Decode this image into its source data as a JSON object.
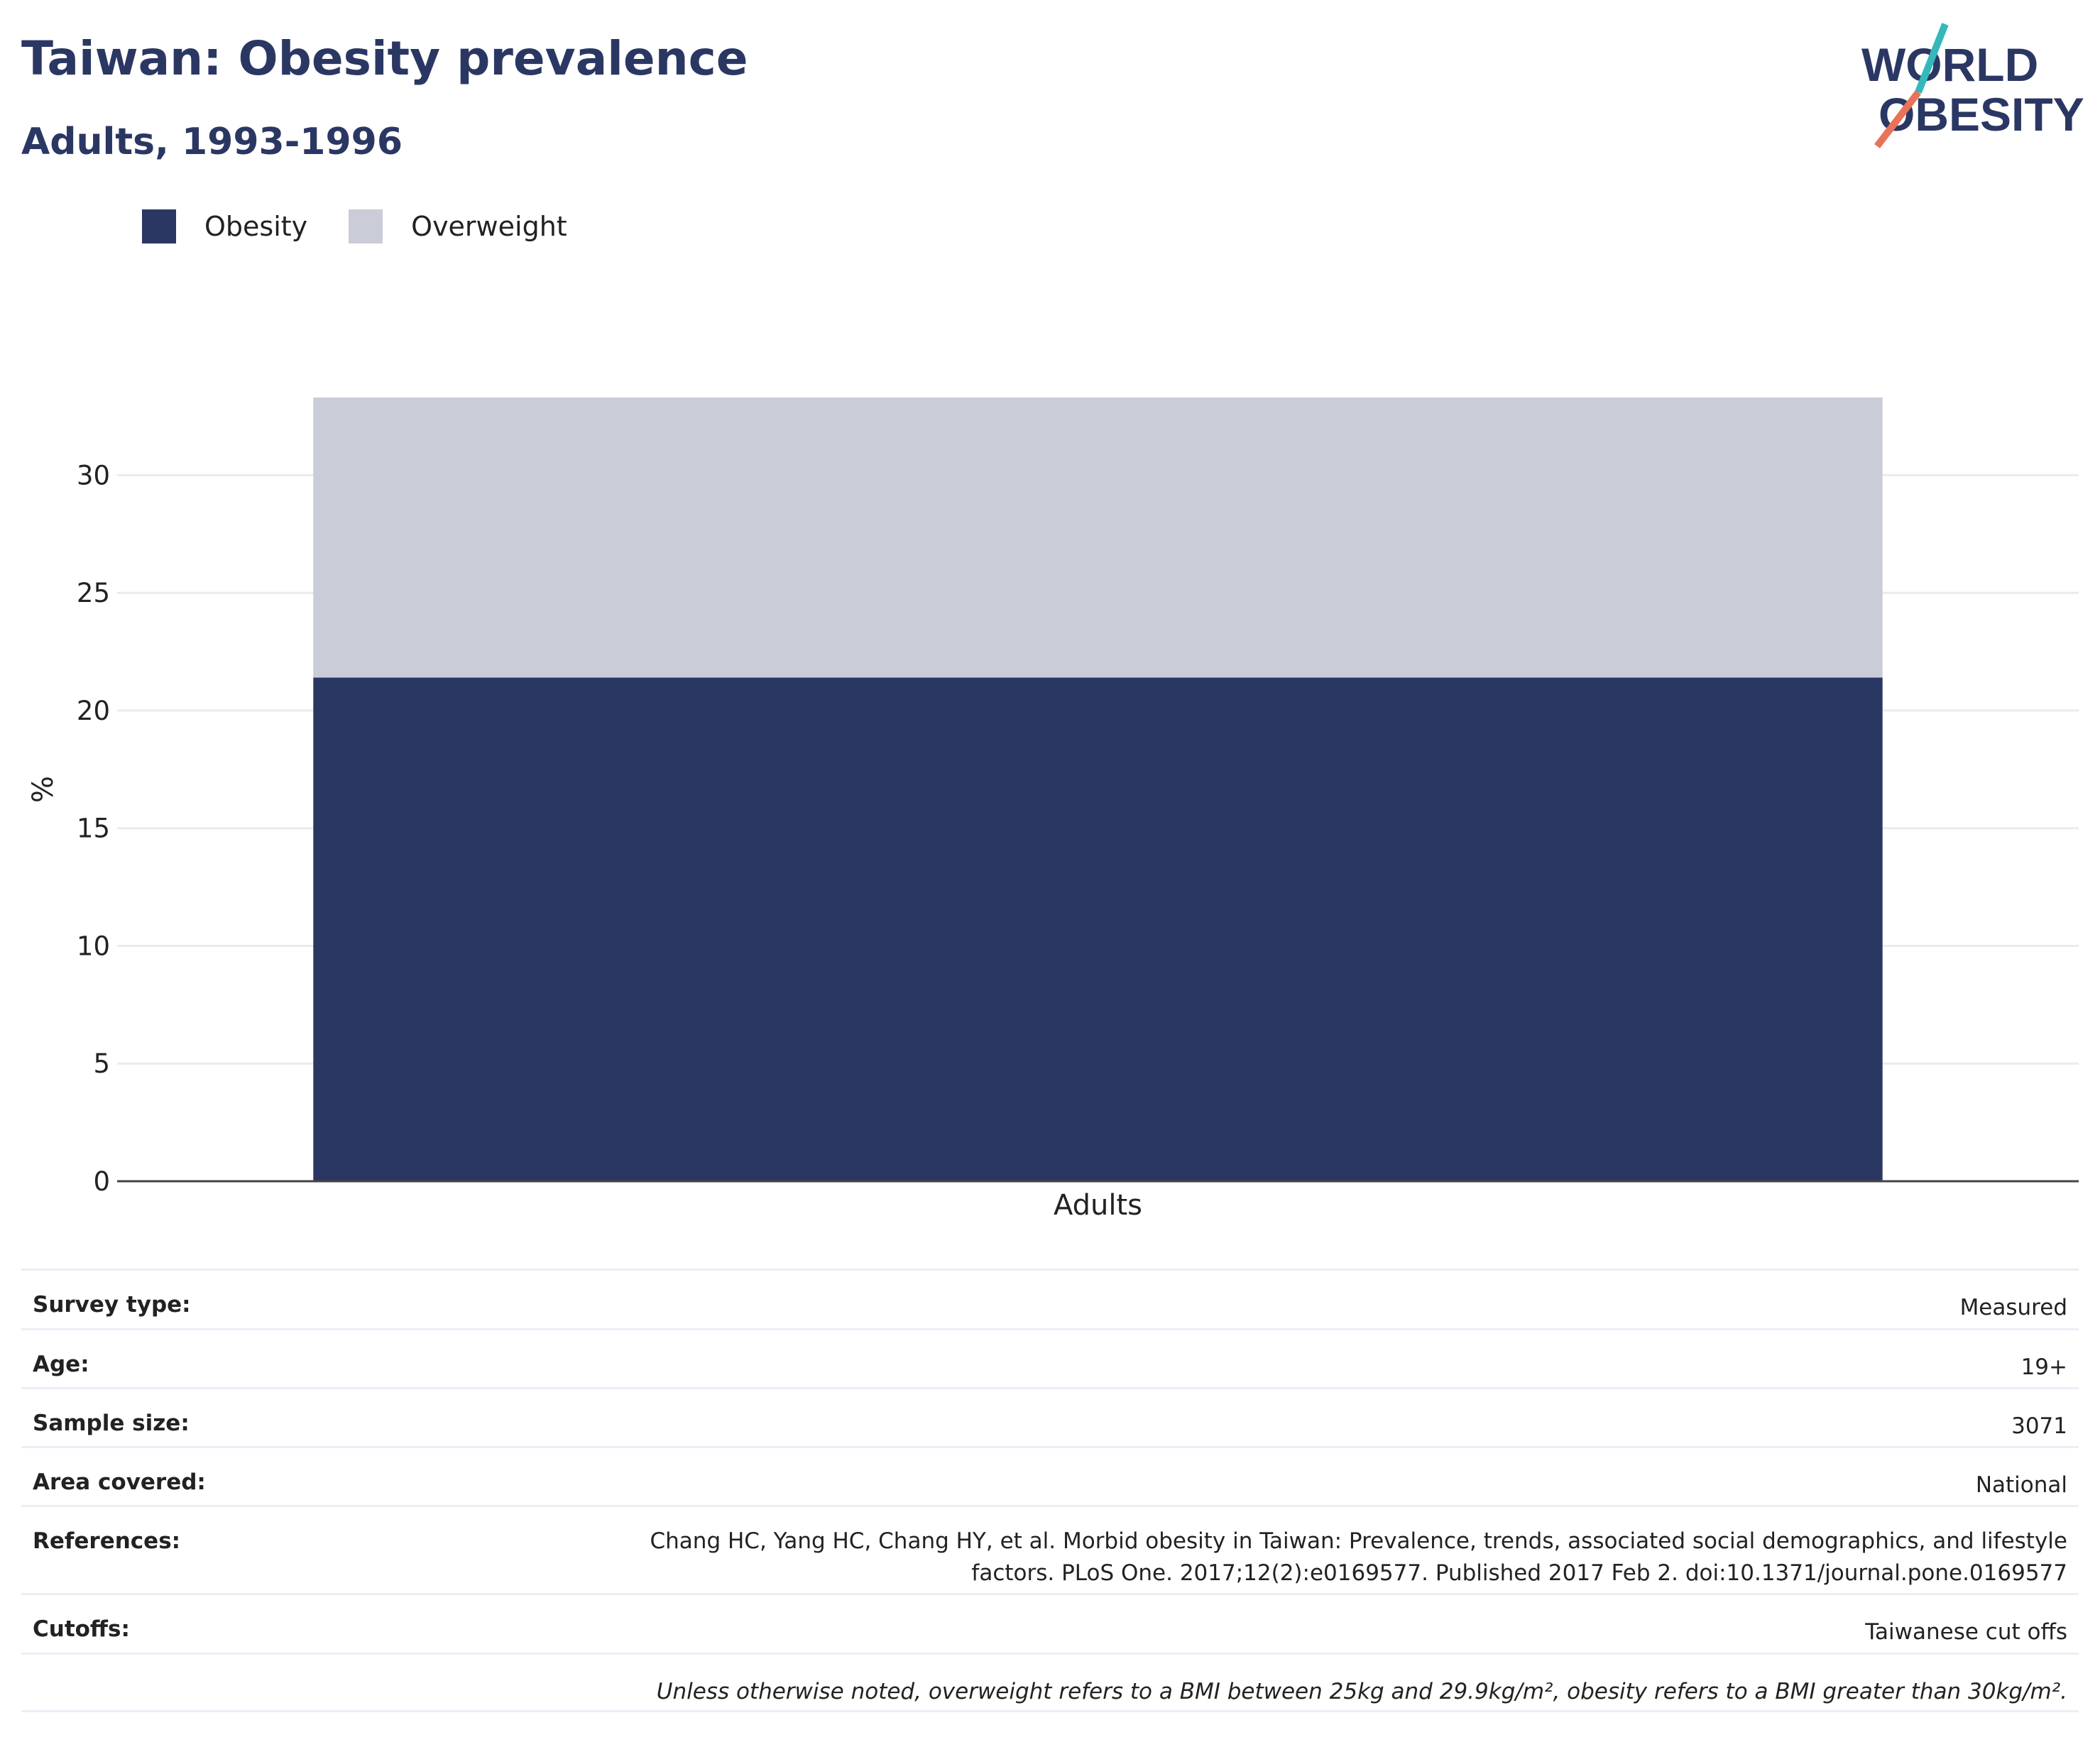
{
  "header": {
    "title": "Taiwan: Obesity prevalence",
    "subtitle": "Adults, 1993-1996"
  },
  "logo": {
    "line1": "WORLD",
    "line2": "OBESITY",
    "colors": {
      "text": "#2b3763",
      "stroke_top": "#35b8bb",
      "stroke_bottom": "#e8735a"
    }
  },
  "legend": [
    {
      "label": "Obesity",
      "color": "#2b3763"
    },
    {
      "label": "Overweight",
      "color": "#caccd8"
    }
  ],
  "chart_data": {
    "type": "bar",
    "stacked": true,
    "categories": [
      "Adults"
    ],
    "series": [
      {
        "name": "Obesity",
        "values": [
          21.4
        ],
        "color": "#2b3763"
      },
      {
        "name": "Overweight",
        "values": [
          11.9
        ],
        "color": "#caccd8"
      }
    ],
    "xlabel": "",
    "ylabel": "%",
    "ylim": [
      0,
      33.3
    ],
    "yticks": [
      0,
      5,
      10,
      15,
      20,
      25,
      30
    ],
    "grid": true,
    "legend_position": "top-left"
  },
  "details": [
    {
      "label": "Survey type:",
      "value": "Measured"
    },
    {
      "label": "Age:",
      "value": "19+"
    },
    {
      "label": "Sample size:",
      "value": "3071"
    },
    {
      "label": "Area covered:",
      "value": "National"
    },
    {
      "label": "References:",
      "value": "Chang HC, Yang HC, Chang HY, et al. Morbid obesity in Taiwan: Prevalence, trends, associated social demographics, and lifestyle factors. PLoS One. 2017;12(2):e0169577. Published 2017 Feb 2. doi:10.1371/journal.pone.0169577"
    },
    {
      "label": "Cutoffs:",
      "value": "Taiwanese cut offs"
    }
  ],
  "footnote": "Unless otherwise noted, overweight refers to a BMI between 25kg and 29.9kg/m², obesity refers to a BMI greater than 30kg/m²."
}
